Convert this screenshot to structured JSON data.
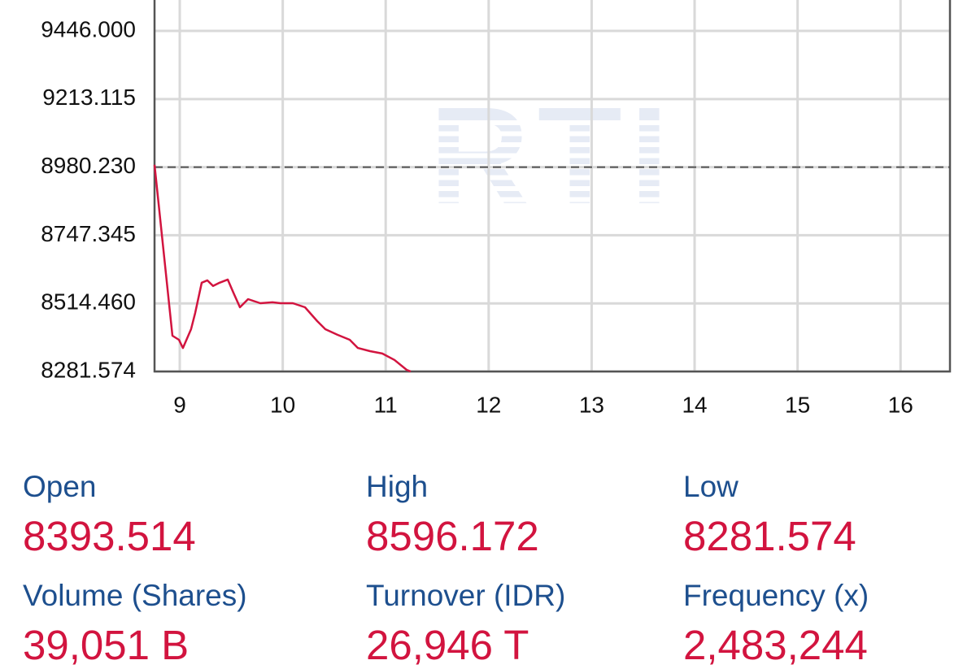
{
  "chart_data": {
    "type": "line",
    "watermark": "RTI",
    "x": [
      8.755,
      8.929,
      8.992,
      9.031,
      9.11,
      9.15,
      9.213,
      9.268,
      9.324,
      9.387,
      9.466,
      9.521,
      9.584,
      9.663,
      9.782,
      9.9,
      9.979,
      10.098,
      10.216,
      10.335,
      10.414,
      10.532,
      10.651,
      10.73,
      10.848,
      10.967,
      11.085,
      11.204,
      11.243
    ],
    "series": [
      {
        "color": "#d2143f",
        "values": [
          8988,
          8404,
          8390,
          8362,
          8426,
          8482,
          8585,
          8593,
          8574,
          8585,
          8596,
          8551,
          8501,
          8529,
          8515,
          8518,
          8515,
          8515,
          8501,
          8454,
          8426,
          8407,
          8390,
          8362,
          8351,
          8343,
          8321,
          8287,
          8281.574
        ]
      }
    ],
    "xlim": [
      8.755,
      16.48
    ],
    "xticks": [
      9,
      10,
      11,
      12,
      13,
      14,
      15,
      16
    ],
    "ylim": [
      8281.574,
      9551.7
    ],
    "yticks": [
      {
        "value": 8281.574,
        "label": "8281.574"
      },
      {
        "value": 8514.46,
        "label": "8514.460"
      },
      {
        "value": 8747.345,
        "label": "8747.345"
      },
      {
        "value": 8980.23,
        "label": "8980.230"
      },
      {
        "value": 9213.115,
        "label": "9213.115"
      },
      {
        "value": 9446,
        "label": "9446.000"
      }
    ],
    "reference_line": 8980.23,
    "grid": true
  },
  "stats": [
    {
      "label": "Open",
      "value": "8393.514"
    },
    {
      "label": "High",
      "value": "8596.172"
    },
    {
      "label": "Low",
      "value": "8281.574"
    },
    {
      "label": "Volume (Shares)",
      "value": "39,051 B"
    },
    {
      "label": "Turnover (IDR)",
      "value": "26,946 T"
    },
    {
      "label": "Frequency (x)",
      "value": "2,483,244"
    }
  ]
}
